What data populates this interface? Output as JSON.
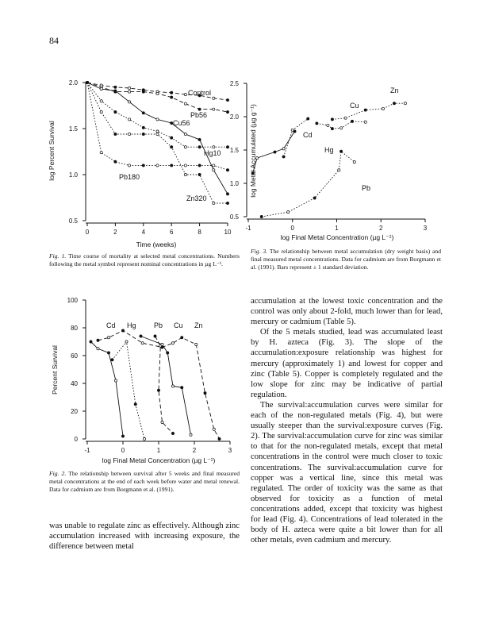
{
  "page_number": "84",
  "chart_data": [
    {
      "id": "fig1",
      "type": "line",
      "xlabel": "Time (weeks)",
      "ylabel": "log Percent Survival",
      "xlim": [
        0,
        10
      ],
      "ylim": [
        0.5,
        2.0
      ],
      "xticks": [
        "0",
        "2",
        "4",
        "6",
        "8",
        "10"
      ],
      "xtick_values": [
        0,
        2,
        4,
        6,
        8,
        10
      ],
      "yticks": [
        "0.5",
        "1.0",
        "1.5",
        "2.0"
      ],
      "ytick_values": [
        0.5,
        1.0,
        1.5,
        2.0
      ],
      "x": [
        0,
        1,
        2,
        3,
        4,
        5,
        6,
        7,
        8,
        9,
        10
      ],
      "series": [
        {
          "name": "Control",
          "style": "dashed",
          "values": [
            2.0,
            1.97,
            1.95,
            1.94,
            1.92,
            1.9,
            1.89,
            1.87,
            1.86,
            1.83,
            1.81
          ]
        },
        {
          "name": "Pb56",
          "style": "dashed",
          "values": [
            2.0,
            1.95,
            1.9,
            1.9,
            1.9,
            1.88,
            1.84,
            1.77,
            1.71,
            1.71,
            1.68
          ]
        },
        {
          "name": "Cu56",
          "style": "solid",
          "values": [
            2.0,
            1.93,
            1.91,
            1.79,
            1.67,
            1.6,
            1.56,
            1.44,
            1.38,
            1.05,
            0.79
          ]
        },
        {
          "name": "Hg10",
          "style": "dotted",
          "values": [
            2.0,
            1.8,
            1.68,
            1.6,
            1.51,
            1.47,
            1.4,
            1.3,
            1.3,
            1.3,
            1.3
          ]
        },
        {
          "name": "Zn320",
          "style": "dotted",
          "values": [
            2.0,
            1.68,
            1.44,
            1.44,
            1.44,
            1.44,
            1.3,
            1.0,
            1.0,
            0.69,
            0.69
          ]
        },
        {
          "name": "Pb180",
          "style": "dotted",
          "values": [
            2.0,
            1.24,
            1.14,
            1.1,
            1.1,
            1.1,
            1.1,
            1.1,
            1.1,
            1.1,
            1.05
          ]
        }
      ]
    },
    {
      "id": "fig3",
      "type": "line",
      "xlabel": "log Final Metal Concentration (µg L⁻¹)",
      "ylabel": "log Metal Accumulated (µg g⁻¹)",
      "xlim": [
        -1,
        3
      ],
      "ylim": [
        0.5,
        2.5
      ],
      "xticks": [
        "-1",
        "0",
        "1",
        "2",
        "3"
      ],
      "xtick_values": [
        -1,
        0,
        1,
        2,
        3
      ],
      "yticks": [
        "0.5",
        "1.0",
        "1.5",
        "2.0",
        "2.5"
      ],
      "ytick_values": [
        0.5,
        1.0,
        1.5,
        2.0,
        2.5
      ],
      "series": [
        {
          "name": "Cd",
          "style": "solid",
          "points": [
            [
              -0.9,
              1.15
            ],
            [
              -0.8,
              1.38
            ],
            [
              -0.4,
              1.47
            ],
            [
              -0.2,
              1.52
            ],
            [
              0.05,
              1.78
            ]
          ]
        },
        {
          "name": "Hg",
          "style": "dotted",
          "points": [
            [
              -0.2,
              1.4
            ],
            [
              0.0,
              1.8
            ],
            [
              0.35,
              1.97
            ]
          ]
        },
        {
          "name": "Cu",
          "style": "dotted",
          "points": [
            [
              0.55,
              1.9
            ],
            [
              0.8,
              1.87
            ],
            [
              0.9,
              1.82
            ],
            [
              1.1,
              1.83
            ],
            [
              1.35,
              1.93
            ],
            [
              1.65,
              1.92
            ]
          ]
        },
        {
          "name": "Zn",
          "style": "dotted",
          "points": [
            [
              0.9,
              1.96
            ],
            [
              1.2,
              1.98
            ],
            [
              1.65,
              2.1
            ],
            [
              2.05,
              2.12
            ],
            [
              2.3,
              2.2
            ],
            [
              2.55,
              2.2
            ]
          ]
        },
        {
          "name": "Pb",
          "style": "dotted",
          "points": [
            [
              -0.7,
              0.5
            ],
            [
              -0.1,
              0.57
            ],
            [
              0.5,
              0.78
            ],
            [
              1.05,
              1.2
            ],
            [
              1.1,
              1.48
            ],
            [
              1.4,
              1.32
            ]
          ]
        }
      ]
    },
    {
      "id": "fig2",
      "type": "line",
      "xlabel": "log Final Metal Concentration (µg L⁻¹)",
      "ylabel": "Percent Survival",
      "xlim": [
        -1,
        3
      ],
      "ylim": [
        0,
        100
      ],
      "xticks": [
        "-1",
        "0",
        "1",
        "2",
        "3"
      ],
      "xtick_values": [
        -1,
        0,
        1,
        2,
        3
      ],
      "yticks": [
        "0",
        "20",
        "40",
        "60",
        "80",
        "100"
      ],
      "ytick_values": [
        0,
        20,
        40,
        60,
        80,
        100
      ],
      "series": [
        {
          "name": "Cd",
          "style": "solid",
          "points": [
            [
              -0.9,
              70
            ],
            [
              -0.7,
              65
            ],
            [
              -0.4,
              62
            ],
            [
              -0.2,
              42
            ],
            [
              0.0,
              2
            ]
          ]
        },
        {
          "name": "Hg",
          "style": "dotted",
          "points": [
            [
              -0.3,
              57
            ],
            [
              0.1,
              70
            ],
            [
              0.35,
              25
            ],
            [
              0.6,
              0
            ]
          ]
        },
        {
          "name": "Pb",
          "style": "dashed",
          "points": [
            [
              0.9,
              74
            ],
            [
              1.05,
              67
            ],
            [
              1.0,
              35
            ],
            [
              1.1,
              12
            ],
            [
              1.4,
              4
            ]
          ]
        },
        {
          "name": "Cu",
          "style": "solid",
          "points": [
            [
              0.5,
              74
            ],
            [
              1.1,
              68
            ],
            [
              1.25,
              62
            ],
            [
              1.4,
              38
            ],
            [
              1.65,
              37
            ],
            [
              1.9,
              3
            ]
          ]
        },
        {
          "name": "Zn",
          "style": "dashed",
          "points": [
            [
              -0.7,
              71
            ],
            [
              -0.4,
              73
            ],
            [
              0.0,
              78
            ],
            [
              0.55,
              69
            ],
            [
              1.1,
              66
            ],
            [
              1.4,
              69
            ],
            [
              1.65,
              73
            ],
            [
              2.05,
              68
            ],
            [
              2.3,
              33
            ],
            [
              2.55,
              7
            ],
            [
              2.7,
              0
            ]
          ]
        }
      ]
    }
  ],
  "captions": {
    "fig1": {
      "label": "Fig. 1.",
      "text": "Time course of mortality at selected metal concentrations. Numbers following the metal symbol represent nominal concentrations in µg L⁻¹."
    },
    "fig3": {
      "label": "Fig. 3.",
      "text": "The relationship between metal accumulation (dry weight basis) and final measured metal concentrations. Data for cadmium are from Borgmann et al. (1991). Bars represent ± 1 standard deviation."
    },
    "fig2": {
      "label": "Fig. 2.",
      "text": "The relationship between survival after 5 weeks and final measured metal concentrations at the end of each week before water and metal renewal. Data for cadmium are from Borgmann et al. (1991)."
    }
  },
  "body": {
    "left_para": "was unable to regulate zinc as effectively. Although zinc accumulation increased with increasing exposure, the difference between metal",
    "right_paras": [
      "accumulation at the lowest toxic concentration and the control was only about 2-fold, much lower than for lead, mercury or cadmium (Table 5).",
      "Of the 5 metals studied, lead was accumulated least by H. azteca (Fig. 3). The slope of the accumulation:exposure relationship was highest for mercury (approximately 1) and lowest for copper and zinc (Table 5). Copper is completely regulated and the low slope for zinc may be indicative of partial regulation.",
      "The survival:accumulation curves were similar for each of the non-regulated metals (Fig. 4), but were usually steeper than the survival:exposure curves (Fig. 2). The survival:accumulation curve for zinc was similar to that for the non-regulated metals, except that metal concentrations in the control were much closer to toxic concentrations. The survival:accumulation curve for copper was a vertical line, since this metal was regulated. The order of toxicity was the same as that observed for toxicity as a function of metal concentrations added, except that toxicity was highest for lead (Fig. 4). Concentrations of lead tolerated in the body of H. azteca were quite a bit lower than for all other metals, even cadmium and mercury."
    ]
  }
}
